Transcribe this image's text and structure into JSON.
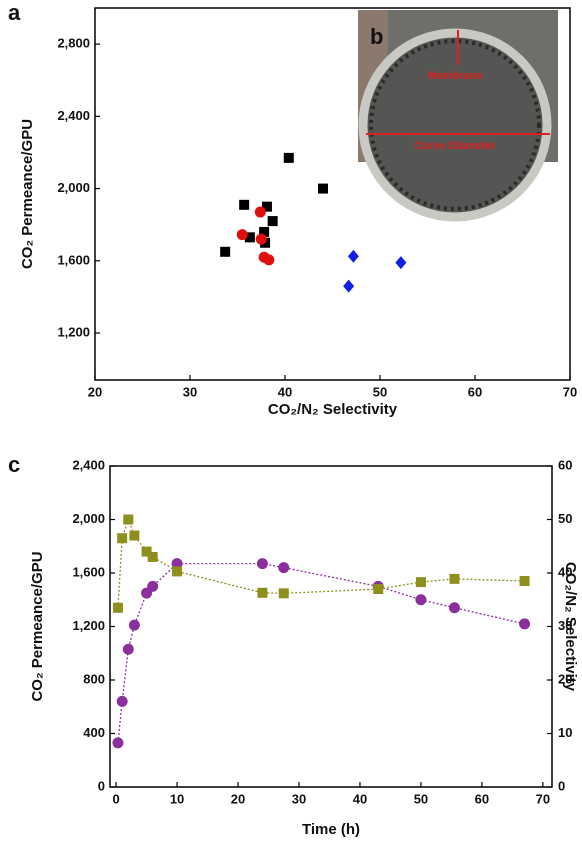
{
  "chart_data": [
    {
      "type": "scatter",
      "panel_label": "a",
      "x_label": "CO₂/N₂ Selectivity",
      "y_label": "CO₂ Permeance/GPU",
      "xlim": [
        20,
        70
      ],
      "xticks": [
        20,
        30,
        40,
        50,
        60,
        70
      ],
      "ylim": [
        940,
        3000
      ],
      "yticks": [
        {
          "value": 1200,
          "label": "1,200"
        },
        {
          "value": 1600,
          "label": "1,600"
        },
        {
          "value": 2000,
          "label": "2,000"
        },
        {
          "value": 2400,
          "label": "2,400"
        },
        {
          "value": 2800,
          "label": "2,800"
        }
      ],
      "series": [
        {
          "color": "#000000",
          "marker": "square",
          "x": [
            33.7,
            35.7,
            36.3,
            37.8,
            37.9,
            38.1,
            38.7,
            40.4,
            44.0
          ],
          "y": [
            1650,
            1910,
            1730,
            1760,
            1700,
            1900,
            1820,
            2170,
            2000
          ]
        },
        {
          "color": "#e01010",
          "marker": "circle",
          "x": [
            37.4,
            35.5,
            37.5,
            37.8,
            38.3
          ],
          "y": [
            1870,
            1745,
            1720,
            1620,
            1605
          ]
        },
        {
          "color": "#1020e0",
          "marker": "diamond",
          "x": [
            47.2,
            52.2,
            46.7
          ],
          "y": [
            1625,
            1590,
            1460
          ]
        }
      ],
      "inset": {
        "label": "b",
        "texts": [
          "Membrane",
          "Curve Diameter"
        ]
      }
    },
    {
      "type": "line",
      "panel_label": "c",
      "x_label": "Time (h)",
      "y_label": "CO₂ Permeance/GPU",
      "y2_label": "CO₂/N₂ Selectivity",
      "xlim": [
        -1,
        71.5
      ],
      "xticks": [
        0,
        10,
        20,
        30,
        40,
        50,
        60,
        70
      ],
      "ylim": [
        0,
        2400
      ],
      "yticks": [
        0,
        400,
        800,
        {
          "value": 1200,
          "label": "1,200"
        },
        {
          "value": 1600,
          "label": "1,600"
        },
        {
          "value": 2000,
          "label": "2,000"
        },
        {
          "value": 2400,
          "label": "2,400"
        }
      ],
      "y2lim": [
        0,
        60
      ],
      "y2ticks": [
        0,
        10,
        20,
        30,
        40,
        50,
        60
      ],
      "x": [
        0.3,
        1,
        2,
        3,
        5,
        6,
        10,
        24,
        27.5,
        43,
        50,
        55.5,
        67
      ],
      "series": [
        {
          "color": "#8b2f9c",
          "marker": "circle",
          "values": [
            330,
            640,
            1030,
            1210,
            1450,
            1500,
            1670,
            1670,
            1640,
            1500,
            1400,
            1340,
            1220
          ]
        },
        {
          "color": "#8f8f1e",
          "marker": "square",
          "axis": "y2",
          "values": [
            33.5,
            46.5,
            50,
            47,
            44,
            43,
            40.3,
            36.3,
            36.2,
            37,
            38.3,
            38.9,
            38.5
          ]
        }
      ]
    }
  ]
}
